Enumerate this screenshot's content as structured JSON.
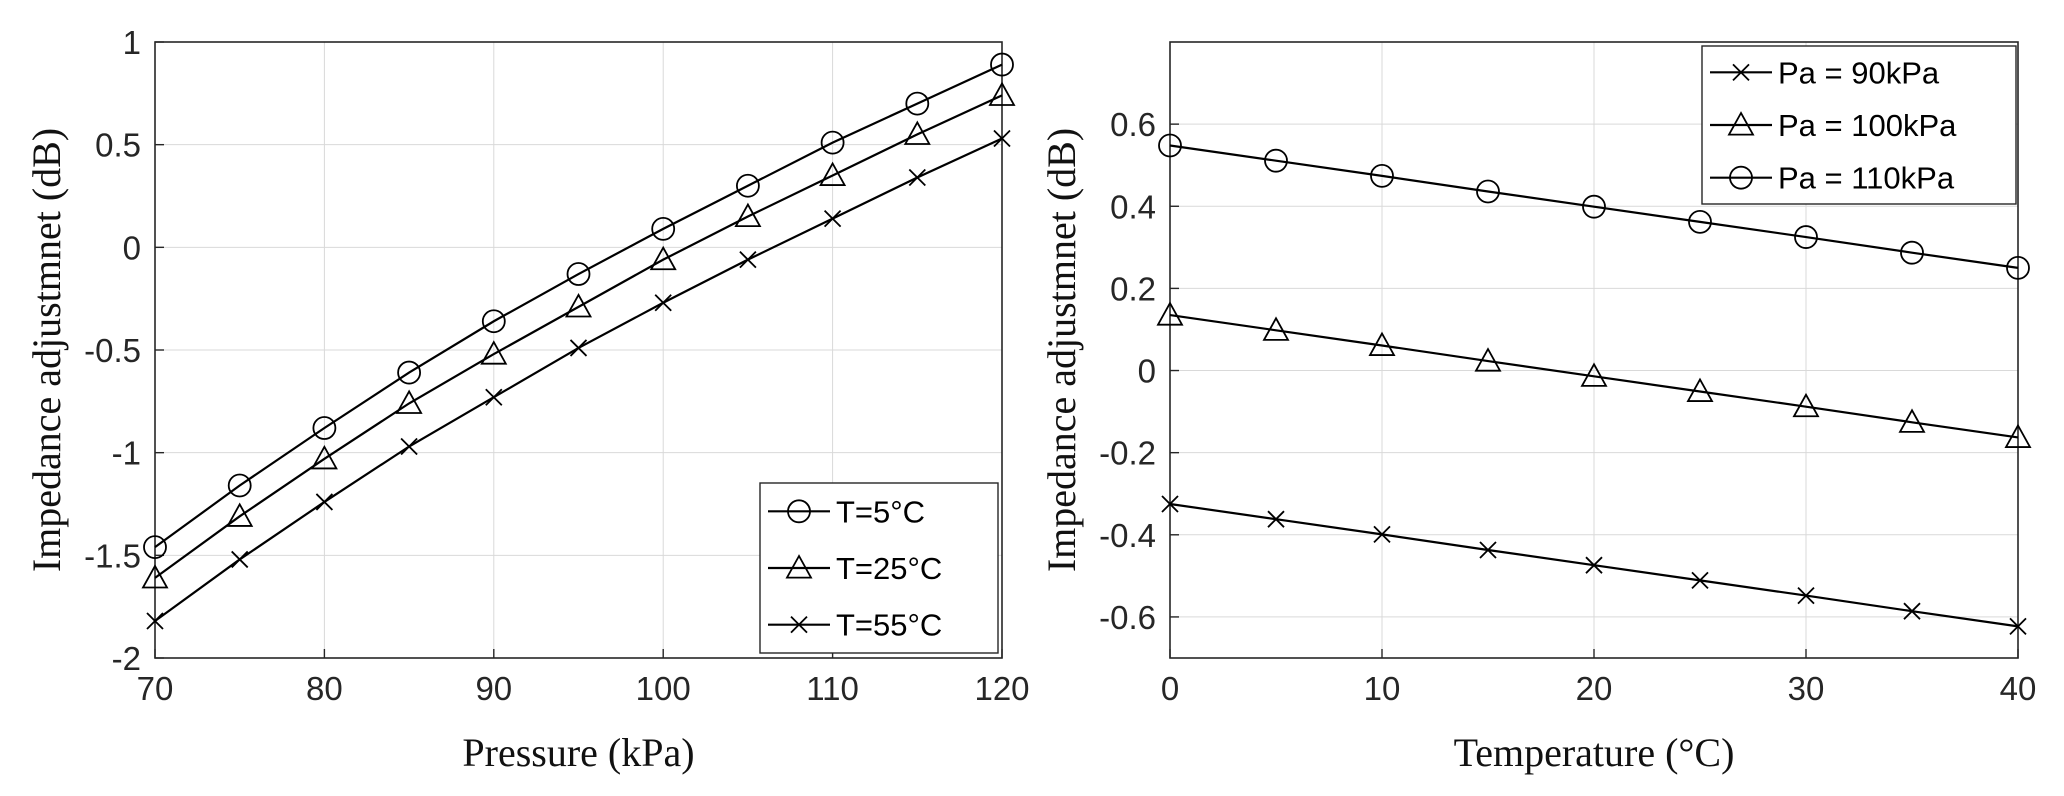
{
  "chart_data": [
    {
      "type": "line",
      "xlabel": "Pressure (kPa)",
      "ylabel": "Impedance adjustmnet (dB)",
      "xlim": [
        70,
        120
      ],
      "ylim": [
        -2,
        1
      ],
      "xticks": [
        70,
        80,
        90,
        100,
        110,
        120
      ],
      "xtick_labels": [
        "70",
        "80",
        "90",
        "100",
        "110",
        "120"
      ],
      "yticks": [
        -2,
        -1.5,
        -1,
        -0.5,
        0,
        0.5,
        1
      ],
      "ytick_labels": [
        "-2",
        "-1.5",
        "-1",
        "-0.5",
        "0",
        "0.5",
        "1"
      ],
      "grid": true,
      "legend_position": "bottom-right",
      "x": [
        70,
        75,
        80,
        85,
        90,
        95,
        100,
        105,
        110,
        115,
        120
      ],
      "series": [
        {
          "name": "T=5°C",
          "marker": "circle",
          "values": [
            -1.46,
            -1.16,
            -0.88,
            -0.61,
            -0.36,
            -0.13,
            0.09,
            0.3,
            0.51,
            0.7,
            0.89
          ]
        },
        {
          "name": "T=25°C",
          "marker": "triangle",
          "values": [
            -1.61,
            -1.31,
            -1.03,
            -0.76,
            -0.52,
            -0.29,
            -0.06,
            0.15,
            0.35,
            0.55,
            0.74
          ]
        },
        {
          "name": "T=55°C",
          "marker": "x",
          "values": [
            -1.82,
            -1.52,
            -1.24,
            -0.97,
            -0.73,
            -0.49,
            -0.27,
            -0.06,
            0.14,
            0.34,
            0.53
          ]
        }
      ]
    },
    {
      "type": "line",
      "xlabel": "Temperature (°C)",
      "ylabel": "Impedance adjustmnet (dB)",
      "xlim": [
        0,
        40
      ],
      "ylim": [
        -0.7,
        0.8
      ],
      "xticks": [
        0,
        10,
        20,
        30,
        40
      ],
      "xtick_labels": [
        "0",
        "10",
        "20",
        "30",
        "40"
      ],
      "yticks": [
        -0.6,
        -0.4,
        -0.2,
        0,
        0.2,
        0.4,
        0.6
      ],
      "ytick_labels": [
        "-0.6",
        "-0.4",
        "-0.2",
        "0",
        "0.2",
        "0.4",
        "0.6"
      ],
      "grid": true,
      "legend_position": "top-right",
      "x": [
        0,
        5,
        10,
        15,
        20,
        25,
        30,
        35,
        40
      ],
      "series": [
        {
          "name": "Pa = 90kPa",
          "marker": "x",
          "values": [
            -0.325,
            -0.362,
            -0.399,
            -0.437,
            -0.474,
            -0.511,
            -0.548,
            -0.586,
            -0.623
          ]
        },
        {
          "name": "Pa = 100kPa",
          "marker": "triangle",
          "values": [
            0.135,
            0.098,
            0.061,
            0.023,
            -0.014,
            -0.051,
            -0.088,
            -0.126,
            -0.163
          ]
        },
        {
          "name": "Pa = 110kPa",
          "marker": "circle",
          "values": [
            0.548,
            0.511,
            0.474,
            0.436,
            0.399,
            0.362,
            0.325,
            0.287,
            0.25
          ]
        }
      ]
    }
  ]
}
